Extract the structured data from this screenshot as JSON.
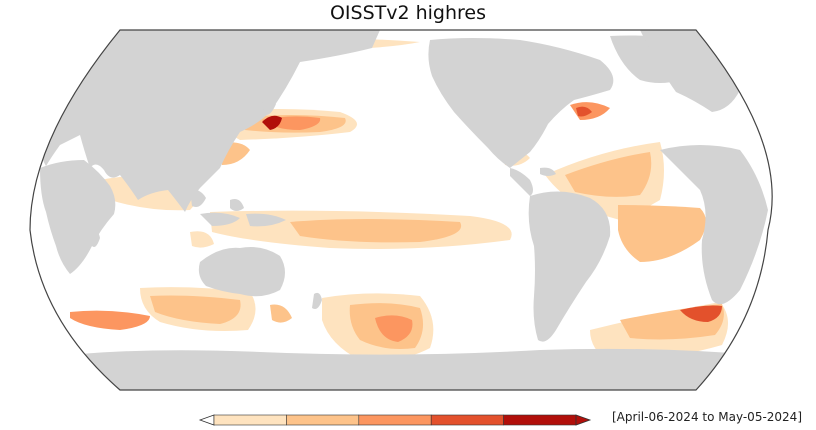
{
  "map": {
    "title": "OISSTv2 highres",
    "date_range": "[April-06-2024 to May-05-2024]",
    "projection": "Robinson",
    "colors": {
      "land": "#d3d3d3",
      "ocean": "#ffffff",
      "outline": "#444444"
    }
  },
  "colorbar": {
    "type": "discrete",
    "extend": "both",
    "bins": 5,
    "colors": [
      "#fee3bf",
      "#fdc38a",
      "#fc9660",
      "#e3512c",
      "#b10f0a"
    ]
  }
}
